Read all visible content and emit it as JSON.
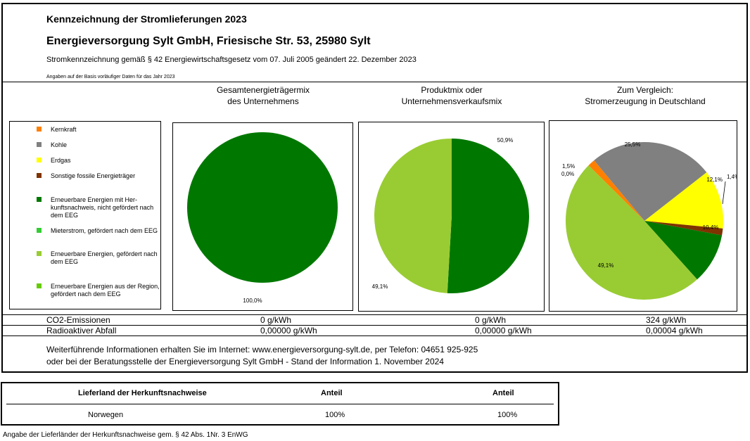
{
  "header": {
    "title": "Kennzeichnung der Stromlieferungen 2023",
    "company": "Energieversorgung Sylt GmbH, Friesische Str. 53, 25980 Sylt",
    "subtitle": "Stromkennzeichnung gemäß § 42 Energiewirtschaftsgesetz vom 07. Juli 2005 geändert 22. Dezember 2023",
    "basis_note": "Angaben auf der Basis vorläufiger Daten für das Jahr 2023"
  },
  "columns": {
    "col1_line1": "Gesamtenergieträgermix",
    "col1_line2": "des Unternehmens",
    "col2_line1": "Produktmix oder",
    "col2_line2": "Unternehmensverkaufsmix",
    "col3_line1": "Zum Vergleich:",
    "col3_line2": "Stromerzeugung in Deutschland"
  },
  "legend": [
    {
      "label": "Kernkraft",
      "color": "#ff8000"
    },
    {
      "label": "Kohle",
      "color": "#808080"
    },
    {
      "label": "Erdgas",
      "color": "#ffff00"
    },
    {
      "label": "Sonstige fossile Energieträger",
      "color": "#7f3300"
    },
    {
      "label": "Erneuerbare Energien mit Her-kunftsnachweis, nicht gefördert nach dem EEG",
      "color": "#007800"
    },
    {
      "label": "Mieterstrom, gefördert nach dem EEG",
      "color": "#33cc33"
    },
    {
      "label": "Erneuerbare Energien, gefördert nach dem EEG",
      "color": "#99cc33"
    },
    {
      "label": "Erneuerbare Energien aus der Region, gefördert nach dem EEG",
      "color": "#66cc00"
    }
  ],
  "chart_data": [
    {
      "type": "pie",
      "title": "Gesamtenergieträgermix des Unternehmens",
      "slices": [
        {
          "category": "Erneuerbare Energien mit Herkunftsnachweis, nicht gefördert nach dem EEG",
          "value": 100.0,
          "label": "100,0%",
          "color": "#007800"
        }
      ]
    },
    {
      "type": "pie",
      "title": "Produktmix oder Unternehmensverkaufsmix",
      "slices": [
        {
          "category": "Erneuerbare Energien mit Herkunftsnachweis, nicht gefördert nach dem EEG",
          "value": 50.9,
          "label": "50,9%",
          "color": "#007800"
        },
        {
          "category": "Erneuerbare Energien, gefördert nach dem EEG",
          "value": 49.1,
          "label": "49,1%",
          "color": "#99cc33"
        }
      ]
    },
    {
      "type": "pie",
      "title": "Zum Vergleich: Stromerzeugung in Deutschland",
      "slices": [
        {
          "category": "Kernkraft",
          "value": 1.5,
          "label": "1,5%",
          "color": "#ff8000"
        },
        {
          "category": "Kohle",
          "value": 25.5,
          "label": "25,5%",
          "color": "#808080"
        },
        {
          "category": "Erdgas",
          "value": 12.1,
          "label": "12,1%",
          "color": "#ffff00"
        },
        {
          "category": "Sonstige fossile Energieträger",
          "value": 1.4,
          "label": "1,4%",
          "color": "#7f3300"
        },
        {
          "category": "Erneuerbare Energien mit Herkunftsnachweis, nicht gefördert nach dem EEG",
          "value": 10.4,
          "label": "10,4%",
          "color": "#007800"
        },
        {
          "category": "Erneuerbare Energien, gefördert nach dem EEG",
          "value": 49.1,
          "label": "49,1%",
          "color": "#99cc33"
        },
        {
          "category": "Mieterstrom, gefördert nach dem EEG",
          "value": 0.0,
          "label": "0,0%",
          "color": "#33cc33"
        }
      ]
    }
  ],
  "emissions": {
    "co2_label": "CO2-Emissionen",
    "co2_values": [
      "0 g/kWh",
      "0 g/kWh",
      "324 g/kWh"
    ],
    "waste_label": "Radioaktiver Abfall",
    "waste_values": [
      "0,00000 g/kWh",
      "0,00000 g/kWh",
      "0,00004 g/kWh"
    ]
  },
  "info": {
    "line1": "Weiterführende Informationen erhalten Sie im Internet: www.energieversorgung-sylt.de, per Telefon: 04651 925-925",
    "line2": "oder bei der Beratungsstelle der Energieversorgung Sylt GmbH - Stand der Information 1. November 2024"
  },
  "origin_table": {
    "headers": [
      "Lieferland der Herkunftsnachweise",
      "Anteil",
      "Anteil"
    ],
    "rows": [
      [
        "Norwegen",
        "100%",
        "100%"
      ]
    ]
  },
  "footnote": "Angabe der Lieferländer der Herkunftsnachweise gem. § 42 Abs. 1Nr. 3 EnWG"
}
